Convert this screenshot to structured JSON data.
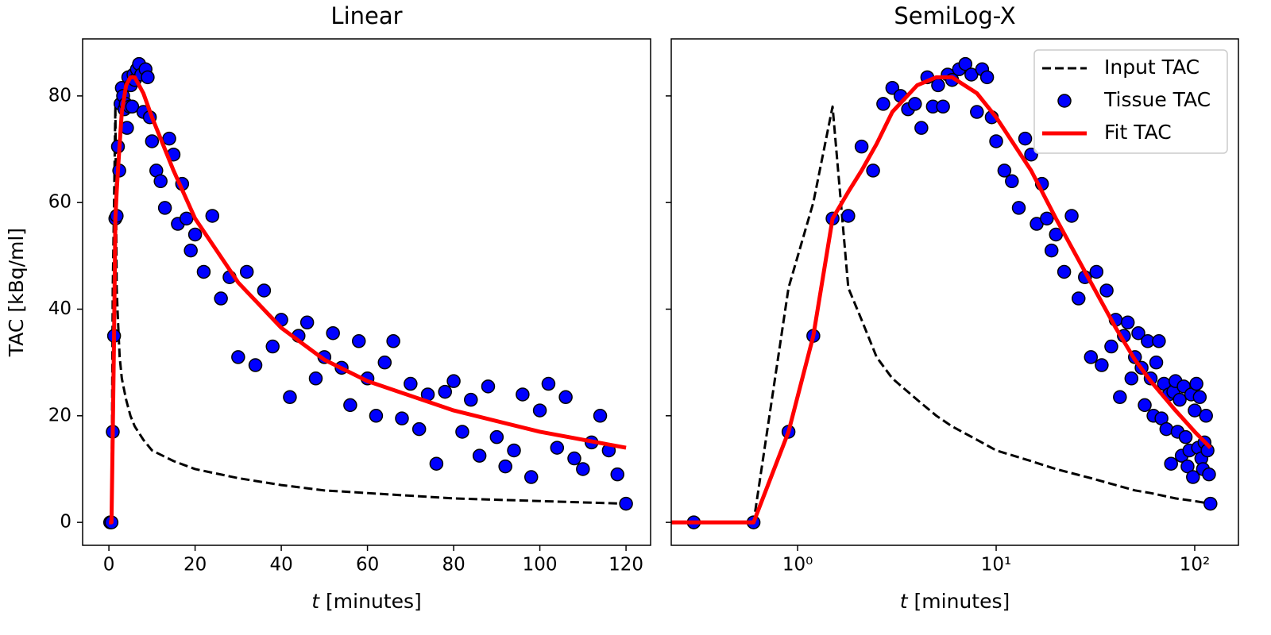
{
  "chart_data": [
    {
      "type": "line",
      "title": "Linear",
      "xscale": "linear",
      "xlabel_var": "t",
      "xlabel_unit": "[minutes]",
      "ylabel": "TAC [kBq/ml]",
      "xlim": [
        -6.1,
        125.7
      ],
      "xticks": [
        0,
        20,
        40,
        60,
        80,
        100,
        120
      ],
      "ylim": [
        -4.3,
        90.7
      ],
      "yticks": [
        0,
        20,
        40,
        60,
        80
      ],
      "show_ytick_labels": true,
      "grid": false,
      "series": [
        {
          "name": "Input TAC",
          "color": "#000000",
          "style": "dashed",
          "x": [
            0,
            0.1,
            0.3,
            0.6,
            0.9,
            1.2,
            1.5,
            1.8,
            2.1,
            2.5,
            3,
            4,
            5,
            6,
            8,
            10,
            15,
            20,
            30,
            40,
            50,
            60,
            80,
            100,
            120
          ],
          "values": [
            0,
            0,
            0,
            0,
            44,
            60,
            78,
            44,
            38,
            31,
            27,
            23,
            20,
            18,
            15.5,
            13.5,
            11.5,
            10,
            8.3,
            7,
            6,
            5.5,
            4.5,
            4,
            3.5
          ]
        },
        {
          "name": "Tissue TAC",
          "color": "#0000ff",
          "style": "markers",
          "x": [
            0.3,
            0.6,
            0.9,
            1.2,
            1.5,
            1.8,
            2.1,
            2.4,
            2.7,
            3.0,
            3.3,
            3.6,
            3.9,
            4.2,
            4.5,
            4.8,
            5.1,
            5.4,
            5.7,
            6.0,
            6.5,
            7,
            7.5,
            8,
            8.5,
            9,
            9.5,
            10,
            11,
            12,
            13,
            14,
            15,
            16,
            17,
            18,
            19,
            20,
            22,
            24,
            26,
            28,
            30,
            32,
            34,
            36,
            38,
            40,
            42,
            44,
            46,
            48,
            50,
            52,
            54,
            56,
            58,
            60,
            62,
            64,
            66,
            68,
            70,
            72,
            74,
            76,
            78,
            80,
            82,
            84,
            86,
            88,
            90,
            92,
            94,
            96,
            98,
            100,
            102,
            104,
            106,
            108,
            110,
            112,
            114,
            116,
            118,
            120
          ],
          "values": [
            0,
            0,
            17,
            35,
            57,
            57.5,
            70.5,
            66,
            78.5,
            81.5,
            80,
            77.5,
            78.5,
            74,
            83.5,
            78,
            82,
            78,
            84,
            83,
            85,
            86,
            84,
            77,
            85,
            83.5,
            76,
            71.5,
            66,
            64,
            59,
            72,
            69,
            56,
            63.5,
            57,
            51,
            54,
            47,
            57.5,
            42,
            46,
            31,
            47,
            29.5,
            43.5,
            33,
            38,
            23.5,
            35,
            37.5,
            27,
            31,
            35.5,
            29,
            22,
            34,
            27,
            20,
            30,
            34,
            19.5,
            26,
            17.5,
            24,
            11,
            24.5,
            26.5,
            17,
            23,
            12.5,
            25.5,
            16,
            10.5,
            13.5,
            24,
            8.5,
            21,
            26,
            14,
            23.5,
            12,
            10,
            15,
            20,
            13.5,
            9,
            3.5
          ]
        },
        {
          "name": "Fit TAC",
          "color": "#ff0000",
          "style": "solid",
          "x": [
            0,
            0.1,
            0.3,
            0.6,
            0.9,
            1.2,
            1.5,
            1.8,
            2.1,
            2.5,
            3,
            4,
            5,
            6,
            8,
            10,
            15,
            20,
            30,
            40,
            50,
            60,
            80,
            100,
            120
          ],
          "values": [
            0,
            0,
            0,
            0,
            17,
            35,
            57,
            62,
            66,
            71,
            77,
            82,
            83.5,
            83.5,
            80.5,
            76,
            66,
            57,
            45,
            36.5,
            30.5,
            26.5,
            21,
            17,
            14
          ]
        }
      ]
    },
    {
      "type": "line",
      "title": "SemiLog-X",
      "xscale": "log",
      "xlabel_var": "t",
      "xlabel_unit": "[minutes]",
      "legend": "upper right",
      "xlim": [
        0.231,
        166
      ],
      "xticks": [
        {
          "value": 1,
          "label": "10⁰"
        },
        {
          "value": 10,
          "label": "10¹"
        },
        {
          "value": 100,
          "label": "10²"
        }
      ],
      "ylim": [
        -4.3,
        90.7
      ],
      "yticks": [
        0,
        20,
        40,
        60,
        80
      ],
      "show_ytick_labels": false,
      "grid": false,
      "series": [
        {
          "name": "Input TAC",
          "color": "#000000",
          "style": "dashed",
          "x": [
            0.1,
            0.3,
            0.6,
            0.9,
            1.2,
            1.5,
            1.8,
            2.1,
            2.5,
            3,
            4,
            5,
            6,
            8,
            10,
            15,
            20,
            30,
            40,
            50,
            60,
            80,
            100,
            120
          ],
          "values": [
            0,
            0,
            0,
            44,
            60,
            78,
            44,
            38,
            31,
            27,
            23,
            20,
            18,
            15.5,
            13.5,
            11.5,
            10,
            8.3,
            7,
            6,
            5.5,
            4.5,
            4,
            3.5
          ]
        },
        {
          "name": "Tissue TAC",
          "color": "#0000ff",
          "style": "markers",
          "x": [
            0.3,
            0.6,
            0.9,
            1.2,
            1.5,
            1.8,
            2.1,
            2.4,
            2.7,
            3.0,
            3.3,
            3.6,
            3.9,
            4.2,
            4.5,
            4.8,
            5.1,
            5.4,
            5.7,
            6.0,
            6.5,
            7,
            7.5,
            8,
            8.5,
            9,
            9.5,
            10,
            11,
            12,
            13,
            14,
            15,
            16,
            17,
            18,
            19,
            20,
            22,
            24,
            26,
            28,
            30,
            32,
            34,
            36,
            38,
            40,
            42,
            44,
            46,
            48,
            50,
            52,
            54,
            56,
            58,
            60,
            62,
            64,
            66,
            68,
            70,
            72,
            74,
            76,
            78,
            80,
            82,
            84,
            86,
            88,
            90,
            92,
            94,
            96,
            98,
            100,
            102,
            104,
            106,
            108,
            110,
            112,
            114,
            116,
            118,
            120
          ],
          "values": [
            0,
            0,
            17,
            35,
            57,
            57.5,
            70.5,
            66,
            78.5,
            81.5,
            80,
            77.5,
            78.5,
            74,
            83.5,
            78,
            82,
            78,
            84,
            83,
            85,
            86,
            84,
            77,
            85,
            83.5,
            76,
            71.5,
            66,
            64,
            59,
            72,
            69,
            56,
            63.5,
            57,
            51,
            54,
            47,
            57.5,
            42,
            46,
            31,
            47,
            29.5,
            43.5,
            33,
            38,
            23.5,
            35,
            37.5,
            27,
            31,
            35.5,
            29,
            22,
            34,
            27,
            20,
            30,
            34,
            19.5,
            26,
            17.5,
            24,
            11,
            24.5,
            26.5,
            17,
            23,
            12.5,
            25.5,
            16,
            10.5,
            13.5,
            24,
            8.5,
            21,
            26,
            14,
            23.5,
            12,
            10,
            15,
            20,
            13.5,
            9,
            3.5
          ]
        },
        {
          "name": "Fit TAC",
          "color": "#ff0000",
          "style": "solid",
          "x": [
            0.1,
            0.3,
            0.6,
            0.9,
            1.2,
            1.5,
            1.8,
            2.1,
            2.5,
            3,
            4,
            5,
            6,
            8,
            10,
            15,
            20,
            30,
            40,
            50,
            60,
            80,
            100,
            120
          ],
          "values": [
            0,
            0,
            0,
            17,
            35,
            57,
            62,
            66,
            71,
            77,
            82,
            83.5,
            83.5,
            80.5,
            76,
            66,
            57,
            45,
            36.5,
            30.5,
            26.5,
            21,
            17,
            14
          ]
        }
      ]
    }
  ]
}
